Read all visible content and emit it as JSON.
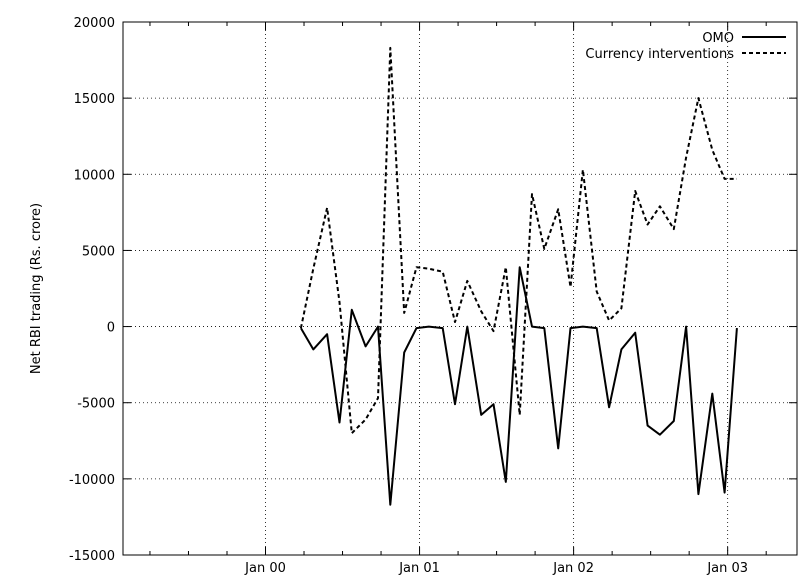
{
  "chart_data": {
    "type": "line",
    "title": "",
    "xlabel": "",
    "ylabel": "Net RBI trading (Rs. crore)",
    "xlim": [
      -0.925,
      3.45
    ],
    "ylim": [
      -15000,
      20000
    ],
    "x_unit": "years since Jan 2000",
    "x_ticks": [
      {
        "value": 0,
        "label": "Jan 00"
      },
      {
        "value": 1,
        "label": "Jan 01"
      },
      {
        "value": 2,
        "label": "Jan 02"
      },
      {
        "value": 3,
        "label": "Jan 03"
      }
    ],
    "y_ticks": [
      -15000,
      -10000,
      -5000,
      0,
      5000,
      10000,
      15000,
      20000
    ],
    "grid": {
      "x": true,
      "y": true,
      "style": "dotted"
    },
    "legend": {
      "placement": "top-right"
    },
    "series": [
      {
        "name": "OMO",
        "dash": "solid",
        "x": [
          0.23,
          0.31,
          0.4,
          0.48,
          0.56,
          0.65,
          0.73,
          0.81,
          0.9,
          0.98,
          1.06,
          1.15,
          1.23,
          1.31,
          1.4,
          1.48,
          1.56,
          1.65,
          1.73,
          1.81,
          1.9,
          1.98,
          2.06,
          2.15,
          2.23,
          2.31,
          2.4,
          2.48,
          2.56,
          2.65,
          2.73,
          2.81,
          2.9,
          2.98,
          3.06
        ],
        "y": [
          -100,
          -1500,
          -500,
          -6300,
          1100,
          -1300,
          0,
          -11700,
          -1700,
          -100,
          0,
          -100,
          -5100,
          0,
          -5800,
          -5100,
          -10200,
          3900,
          0,
          -100,
          -8000,
          -100,
          0,
          -100,
          -5300,
          -1500,
          -400,
          -6500,
          -7100,
          -6200,
          0,
          -11000,
          -4400,
          -10900,
          -100
        ]
      },
      {
        "name": "Currency interventions",
        "dash": "dashed",
        "x": [
          0.23,
          0.31,
          0.4,
          0.48,
          0.56,
          0.65,
          0.73,
          0.81,
          0.9,
          0.98,
          1.06,
          1.15,
          1.23,
          1.31,
          1.4,
          1.48,
          1.56,
          1.65,
          1.73,
          1.81,
          1.9,
          1.98,
          2.06,
          2.15,
          2.23,
          2.31,
          2.4,
          2.48,
          2.56,
          2.65,
          2.73,
          2.81,
          2.9,
          2.98,
          3.06
        ],
        "y": [
          -100,
          3800,
          7800,
          1600,
          -7000,
          -6100,
          -4700,
          18300,
          900,
          3900,
          3800,
          3600,
          300,
          3000,
          1000,
          -300,
          3900,
          -5800,
          8700,
          5100,
          7700,
          2600,
          10300,
          2300,
          400,
          1200,
          8900,
          6700,
          7900,
          6400,
          11100,
          15000,
          11600,
          9700,
          9700
        ]
      }
    ]
  }
}
